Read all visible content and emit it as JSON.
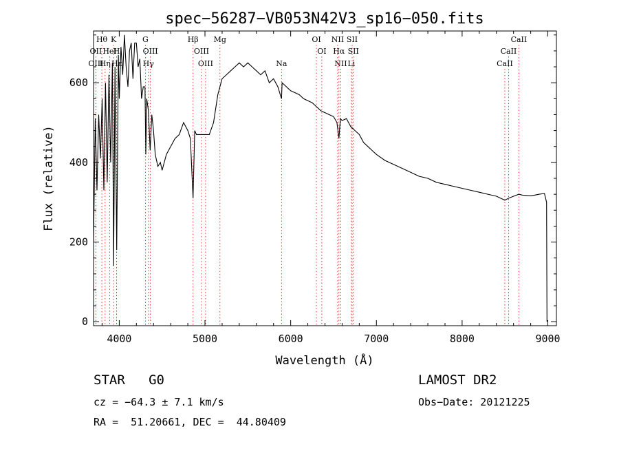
{
  "chart_data": {
    "type": "line",
    "title": "spec−56287−VB053N42V3_sp16−050.fits",
    "xlabel": "Wavelength (Å)",
    "ylabel": "Flux (relative)",
    "xlim": [
      3700,
      9100
    ],
    "ylim": [
      -10,
      730
    ],
    "xticks": [
      4000,
      5000,
      6000,
      7000,
      8000,
      9000
    ],
    "yticks": [
      0,
      200,
      400,
      600
    ],
    "grid": false,
    "series": [
      {
        "x": [
          3700,
          3720,
          3740,
          3760,
          3780,
          3800,
          3820,
          3840,
          3860,
          3880,
          3900,
          3920,
          3934,
          3950,
          3970,
          3990,
          4000,
          4020,
          4040,
          4060,
          4080,
          4101,
          4120,
          4140,
          4160,
          4180,
          4200,
          4220,
          4240,
          4260,
          4280,
          4300,
          4310,
          4320,
          4340,
          4360,
          4380,
          4400,
          4420,
          4450,
          4480,
          4500,
          4550,
          4600,
          4650,
          4700,
          4750,
          4800,
          4830,
          4861,
          4880,
          4900,
          4950,
          5000,
          5050,
          5100,
          5150,
          5200,
          5250,
          5300,
          5350,
          5400,
          5450,
          5500,
          5550,
          5600,
          5650,
          5700,
          5750,
          5800,
          5850,
          5893,
          5900,
          5950,
          6000,
          6050,
          6100,
          6150,
          6200,
          6250,
          6300,
          6350,
          6400,
          6450,
          6500,
          6540,
          6563,
          6580,
          6600,
          6650,
          6700,
          6750,
          6800,
          6850,
          6900,
          6950,
          7000,
          7100,
          7200,
          7300,
          7400,
          7500,
          7600,
          7700,
          7800,
          7900,
          8000,
          8100,
          8200,
          8300,
          8400,
          8498,
          8542,
          8600,
          8662,
          8700,
          8750,
          8800,
          8850,
          8900,
          8960,
          8985,
          8990
        ],
        "y": [
          200,
          510,
          330,
          520,
          410,
          560,
          330,
          600,
          350,
          620,
          400,
          650,
          140,
          640,
          180,
          670,
          560,
          690,
          620,
          720,
          640,
          590,
          680,
          700,
          610,
          700,
          700,
          640,
          660,
          560,
          590,
          590,
          420,
          560,
          530,
          430,
          520,
          480,
          420,
          390,
          400,
          380,
          420,
          440,
          460,
          470,
          500,
          480,
          460,
          310,
          480,
          470,
          470,
          470,
          470,
          500,
          570,
          610,
          620,
          630,
          640,
          650,
          640,
          650,
          640,
          630,
          620,
          630,
          600,
          610,
          590,
          560,
          600,
          590,
          580,
          575,
          570,
          560,
          555,
          550,
          540,
          530,
          525,
          520,
          515,
          500,
          460,
          510,
          505,
          510,
          490,
          480,
          470,
          450,
          440,
          430,
          420,
          405,
          395,
          385,
          375,
          365,
          360,
          350,
          345,
          340,
          335,
          330,
          325,
          320,
          315,
          305,
          310,
          315,
          320,
          318,
          317,
          316,
          318,
          320,
          322,
          300,
          0
        ]
      }
    ],
    "lines": [
      {
        "name": "Hθ",
        "x": 3797,
        "row": 0
      },
      {
        "name": "K",
        "x": 3934,
        "row": 0
      },
      {
        "name": "G",
        "x": 4305,
        "row": 0
      },
      {
        "name": "Hβ",
        "x": 4861,
        "row": 0
      },
      {
        "name": "Mg",
        "x": 5175,
        "row": 0
      },
      {
        "name": "OI",
        "x": 6300,
        "row": 0
      },
      {
        "name": "NII",
        "x": 6548,
        "row": 0
      },
      {
        "name": "SII",
        "x": 6717,
        "row": 0
      },
      {
        "name": "CaII",
        "x": 8662,
        "row": 0
      },
      {
        "name": "OII",
        "x": 3727,
        "row": 1
      },
      {
        "name": "HeI",
        "x": 3889,
        "row": 1
      },
      {
        "name": "H",
        "x": 3969,
        "row": 1
      },
      {
        "name": "OIII",
        "x": 4363,
        "row": 1
      },
      {
        "name": "OIII",
        "x": 4959,
        "row": 1
      },
      {
        "name": "OI",
        "x": 6363,
        "row": 1
      },
      {
        "name": "Hα",
        "x": 6563,
        "row": 1
      },
      {
        "name": "SII",
        "x": 6731,
        "row": 1
      },
      {
        "name": "CaII",
        "x": 8542,
        "row": 1
      },
      {
        "name": "OIII",
        "x": 3727,
        "row": 2
      },
      {
        "name": "Hη",
        "x": 3835,
        "row": 2
      },
      {
        "name": "Hε",
        "x": 3970,
        "row": 2
      },
      {
        "name": "Hγ",
        "x": 4340,
        "row": 2
      },
      {
        "name": "OIII",
        "x": 5007,
        "row": 2
      },
      {
        "name": "Na",
        "x": 5893,
        "row": 2
      },
      {
        "name": "NII",
        "x": 6584,
        "row": 2
      },
      {
        "name": "Li",
        "x": 6708,
        "row": 2
      },
      {
        "name": "CaII",
        "x": 8498,
        "row": 2
      }
    ],
    "line_marker_color": "#ff0000"
  },
  "info": {
    "star_type": "STAR   G0",
    "survey": "LAMOST DR2",
    "cz": "cz = −64.3 ± 7.1 km/s",
    "obs_date": "Obs−Date: 20121225",
    "coords": "RA =  51.20661, DEC =  44.80409"
  }
}
